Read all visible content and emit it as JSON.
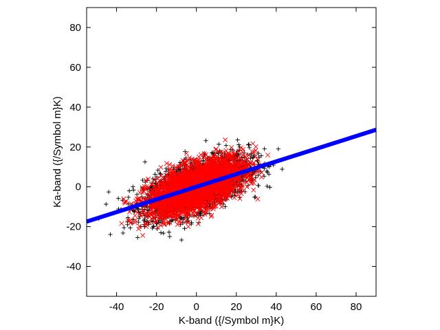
{
  "chart_data": {
    "type": "scatter",
    "xlabel": "K-band ({/Symbol m}K)",
    "ylabel": "Ka-band ({/Symbol m}K)",
    "xlim": [
      -55,
      90
    ],
    "ylim": [
      -55,
      90
    ],
    "xticks": [
      -40,
      -20,
      0,
      20,
      40,
      60,
      80
    ],
    "yticks": [
      -40,
      -20,
      0,
      20,
      40,
      60,
      80
    ],
    "grid": false,
    "legend": "none",
    "series": [
      {
        "marker": "plus",
        "color": "#000000",
        "distribution": {
          "center": [
            0,
            0
          ],
          "sd_x": 13,
          "sd_y": 7.5,
          "correlation": 0.6,
          "count": 2500
        },
        "x_extent": [
          -50,
          43
        ],
        "y_extent": [
          -28,
          28
        ]
      },
      {
        "marker": "cross",
        "color": "#ff0000",
        "distribution": {
          "center": [
            0,
            0
          ],
          "sd_x": 12,
          "sd_y": 7,
          "correlation": 0.6,
          "count": 3000
        },
        "x_extent": [
          -55,
          38
        ],
        "y_extent": [
          -28,
          28
        ]
      },
      {
        "marker": "line",
        "color": "#0000ff",
        "fit": {
          "slope": 0.318,
          "intercept": 0.0
        },
        "x_range": [
          -55,
          90
        ]
      }
    ]
  }
}
